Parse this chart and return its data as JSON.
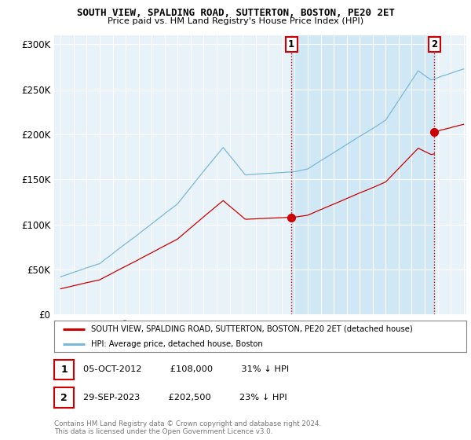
{
  "title": "SOUTH VIEW, SPALDING ROAD, SUTTERTON, BOSTON, PE20 2ET",
  "subtitle": "Price paid vs. HM Land Registry's House Price Index (HPI)",
  "ytick_values": [
    0,
    50000,
    100000,
    150000,
    200000,
    250000,
    300000
  ],
  "ylabel_ticks": [
    "£0",
    "£50K",
    "£100K",
    "£150K",
    "£200K",
    "£250K",
    "£300K"
  ],
  "ylim": [
    0,
    310000
  ],
  "xlim_min": 1994.5,
  "xlim_max": 2026.2,
  "hpi_color": "#7ab8d8",
  "price_color": "#cc0000",
  "shade_color": "#d0e8f5",
  "plot_bg_color": "#e8f2f9",
  "legend_label_red": "SOUTH VIEW, SPALDING ROAD, SUTTERTON, BOSTON, PE20 2ET (detached house)",
  "legend_label_blue": "HPI: Average price, detached house, Boston",
  "annotation1_label": "1",
  "annotation1_date": "05-OCT-2012",
  "annotation1_price": "£108,000",
  "annotation1_hpi": "31% ↓ HPI",
  "annotation2_label": "2",
  "annotation2_date": "29-SEP-2023",
  "annotation2_price": "£202,500",
  "annotation2_hpi": "23% ↓ HPI",
  "sale1_year": 2012.75,
  "sale1_price": 108000,
  "sale2_year": 2023.75,
  "sale2_price": 202500,
  "footnote1": "Contains HM Land Registry data © Crown copyright and database right 2024.",
  "footnote2": "This data is licensed under the Open Government Licence v3.0."
}
